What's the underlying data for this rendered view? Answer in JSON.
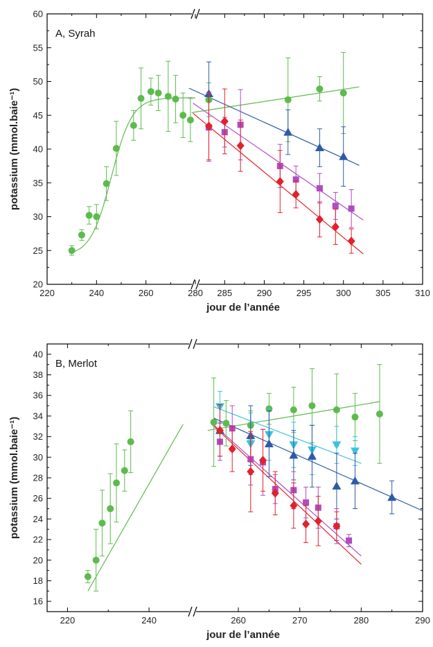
{
  "chart_data": [
    {
      "type": "scatter",
      "panel_label": "A, Syrah",
      "xlabel": "jour de l’année",
      "ylabel": "potassium (mmol.baie⁻¹)",
      "ylim": [
        20,
        60
      ],
      "yticks": [
        20,
        25,
        30,
        35,
        40,
        45,
        50,
        55,
        60
      ],
      "x_axis_break": true,
      "x_segments": [
        {
          "xlim": [
            220,
            280
          ],
          "ticks": [
            220,
            240,
            260,
            280
          ]
        },
        {
          "xlim": [
            282,
            310
          ],
          "ticks": [
            285,
            290,
            295,
            300,
            305,
            310
          ]
        }
      ],
      "grid": false,
      "series": [
        {
          "marker": "circle",
          "color": "#5dbb4d",
          "x": [
            230,
            234,
            237,
            240,
            244,
            248,
            255,
            258,
            262,
            265,
            269,
            272,
            275,
            278,
            283,
            293,
            297,
            300
          ],
          "y": [
            25.0,
            27.3,
            30.2,
            30.0,
            34.9,
            40.1,
            43.5,
            47.5,
            48.5,
            48.3,
            47.8,
            47.4,
            45.0,
            44.3,
            47.3,
            47.3,
            48.9,
            48.3
          ],
          "err": [
            0.7,
            0.8,
            1.3,
            1.8,
            2.5,
            4.0,
            2.2,
            4.5,
            2.0,
            2.6,
            5.2,
            3.5,
            3.3,
            3.2,
            2.5,
            6.2,
            1.8,
            6.0
          ]
        },
        {
          "marker": "triangle-up",
          "color": "#2e5aa8",
          "x": [
            283,
            293,
            297,
            300
          ],
          "y": [
            48.2,
            42.5,
            40.2,
            38.9
          ],
          "err": [
            4.7,
            3.3,
            2.8,
            4.4
          ]
        },
        {
          "marker": "square",
          "color": "#b04cc0",
          "x": [
            283,
            285,
            287,
            292,
            294,
            297,
            299,
            301
          ],
          "y": [
            43.2,
            42.5,
            43.6,
            37.5,
            35.5,
            34.2,
            31.6,
            31.2
          ],
          "err": [
            5.0,
            2.2,
            5.2,
            3.2,
            2.0,
            2.2,
            2.0,
            2.8
          ]
        },
        {
          "marker": "diamond",
          "color": "#e2212a",
          "x": [
            283,
            285,
            287,
            292,
            294,
            297,
            299,
            301
          ],
          "y": [
            43.4,
            44.1,
            40.5,
            35.2,
            33.3,
            29.6,
            28.5,
            26.4
          ],
          "err": [
            5.0,
            4.8,
            3.8,
            4.6,
            2.0,
            2.6,
            2.6,
            1.8
          ]
        }
      ],
      "fits": [
        {
          "color": "#5dbb4d",
          "kind": "sigmoid",
          "x": [
            229,
            280
          ],
          "base": 24.2,
          "top": 47.6,
          "mid": 246,
          "scale": 4.2
        },
        {
          "color": "#5dbb4d",
          "kind": "linear",
          "x": [
            278.5,
            302
          ],
          "y": [
            45.4,
            49.2
          ]
        },
        {
          "color": "#2e5aa8",
          "kind": "linear",
          "x": [
            280.5,
            302
          ],
          "y": [
            49.0,
            37.6
          ]
        },
        {
          "color": "#b04cc0",
          "kind": "linear",
          "x": [
            281,
            302.5
          ],
          "y": [
            46.8,
            29.5
          ]
        },
        {
          "color": "#e2212a",
          "kind": "linear",
          "x": [
            281,
            302.5
          ],
          "y": [
            45.3,
            24.5
          ]
        }
      ]
    },
    {
      "type": "scatter",
      "panel_label": "B, Merlot",
      "xlabel": "jour de l’année",
      "ylabel": "potassium (mmol.baie⁻¹)",
      "ylim": [
        15,
        41
      ],
      "yticks": [
        16,
        18,
        20,
        22,
        24,
        26,
        28,
        30,
        32,
        34,
        36,
        38,
        40
      ],
      "x_axis_break": true,
      "x_segments": [
        {
          "xlim": [
            215,
            250
          ],
          "ticks": [
            220,
            240
          ]
        },
        {
          "xlim": [
            253,
            290
          ],
          "ticks": [
            260,
            270,
            280,
            290
          ]
        }
      ],
      "grid": false,
      "series": [
        {
          "marker": "circle",
          "color": "#5dbb4d",
          "x": [
            225,
            227,
            228.5,
            230.5,
            232,
            234,
            235.5,
            256,
            258,
            262,
            265,
            269,
            272,
            276,
            279,
            283
          ],
          "y": [
            18.4,
            20.0,
            23.6,
            25.0,
            27.5,
            28.7,
            31.5,
            33.4,
            33.3,
            33.1,
            34.7,
            34.6,
            35.0,
            34.6,
            33.9,
            34.2
          ],
          "err": [
            0.6,
            3.0,
            3.2,
            3.4,
            3.8,
            2.0,
            3.0,
            4.3,
            2.2,
            1.4,
            1.5,
            2.2,
            3.6,
            3.5,
            2.3,
            4.8
          ]
        },
        {
          "marker": "triangle-down",
          "color": "#3cc3dc",
          "x": [
            257,
            262,
            265,
            269,
            272,
            276,
            279
          ],
          "y": [
            34.9,
            31.3,
            32.2,
            31.2,
            30.7,
            31.2,
            30.6
          ],
          "err": [
            1.5,
            3.0,
            2.5,
            2.2,
            2.4,
            1.8,
            1.4
          ]
        },
        {
          "marker": "triangle-up",
          "color": "#2e5aa8",
          "x": [
            257,
            262,
            265,
            269,
            272,
            276,
            279,
            285
          ],
          "y": [
            32.6,
            32.1,
            31.3,
            30.2,
            30.1,
            27.2,
            27.7,
            26.1
          ],
          "err": [
            2.5,
            2.9,
            3.2,
            2.4,
            3.0,
            3.2,
            2.7,
            1.6
          ]
        },
        {
          "marker": "square",
          "color": "#b04cc0",
          "x": [
            257,
            259,
            262,
            264,
            266,
            269,
            271,
            273,
            276,
            278
          ],
          "y": [
            31.5,
            32.8,
            29.8,
            29.5,
            26.9,
            26.8,
            25.6,
            25.1,
            23.3,
            21.9
          ],
          "err": [
            1.8,
            2.2,
            2.5,
            3.2,
            1.4,
            1.8,
            1.5,
            2.0,
            1.7,
            0.6
          ]
        },
        {
          "marker": "diamond",
          "color": "#e2212a",
          "x": [
            257,
            259,
            262,
            264,
            266,
            269,
            271,
            273,
            276
          ],
          "y": [
            32.6,
            30.8,
            28.6,
            29.7,
            26.5,
            25.3,
            23.5,
            23.8,
            23.3
          ],
          "err": [
            2.5,
            2.2,
            3.9,
            3.0,
            2.1,
            2.2,
            1.8,
            2.4,
            1.4
          ]
        }
      ],
      "fits": [
        {
          "color": "#5dbb4d",
          "kind": "linear",
          "x": [
            225,
            251
          ],
          "y": [
            17.0,
            33.2
          ]
        },
        {
          "color": "#5dbb4d",
          "kind": "linear",
          "x": [
            255,
            283
          ],
          "y": [
            32.6,
            35.4
          ]
        },
        {
          "color": "#3cc3dc",
          "kind": "linear",
          "x": [
            256,
            280
          ],
          "y": [
            34.9,
            29.4
          ]
        },
        {
          "color": "#2e5aa8",
          "kind": "linear",
          "x": [
            256,
            290
          ],
          "y": [
            33.8,
            24.8
          ]
        },
        {
          "color": "#b04cc0",
          "kind": "linear",
          "x": [
            255.5,
            280
          ],
          "y": [
            33.4,
            20.4
          ]
        },
        {
          "color": "#e2212a",
          "kind": "linear",
          "x": [
            255.5,
            280
          ],
          "y": [
            33.3,
            19.6
          ]
        }
      ]
    }
  ]
}
